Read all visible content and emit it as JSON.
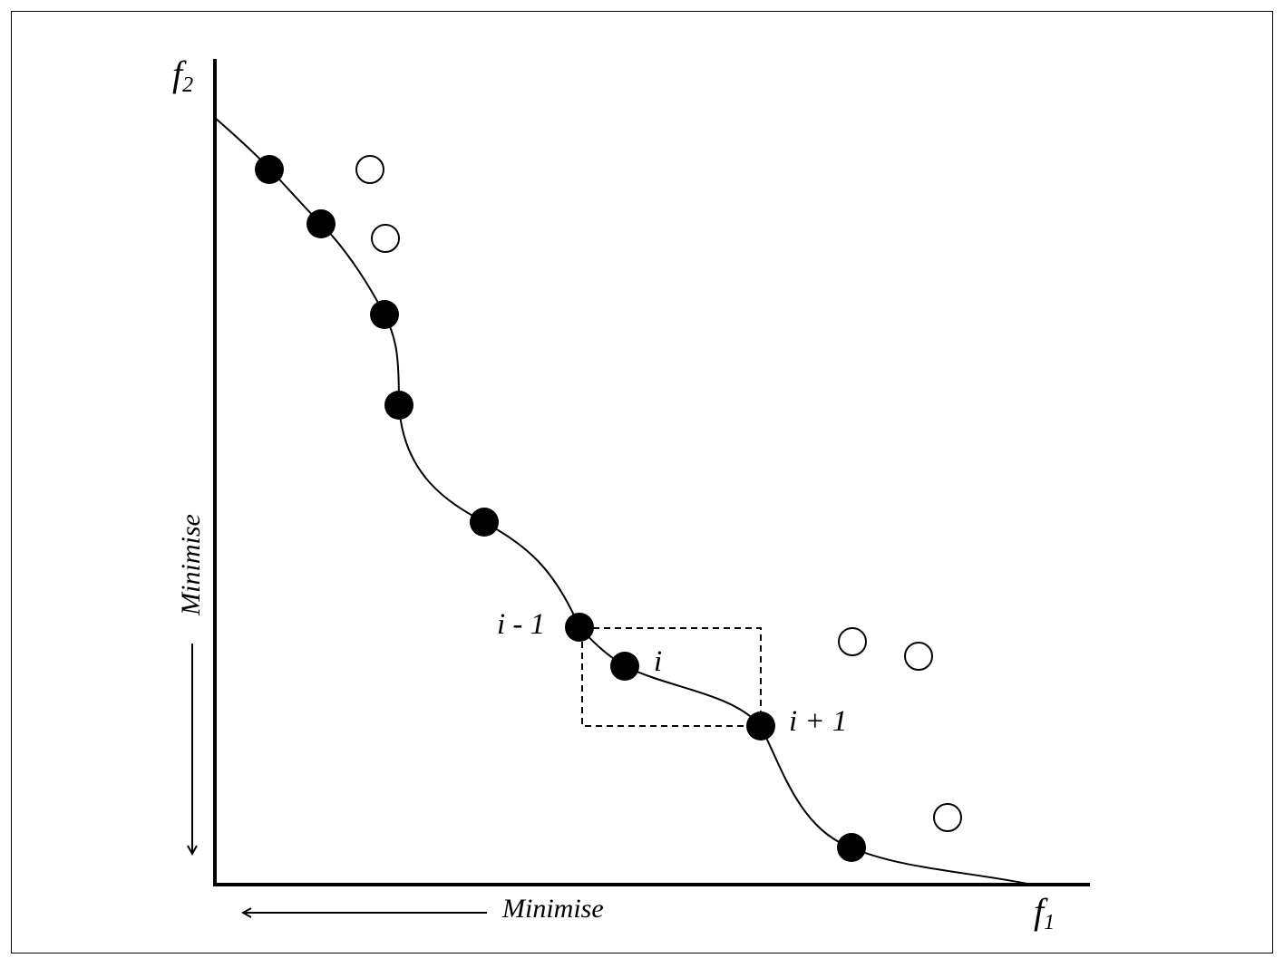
{
  "axes": {
    "y_label": "f",
    "y_label_sub": "2",
    "x_label": "f",
    "x_label_sub": "1",
    "y_direction_label": "Minimise",
    "x_direction_label": "Minimise"
  },
  "point_labels": {
    "prev": "i - 1",
    "current": "i",
    "next": "i + 1"
  },
  "colors": {
    "ink": "#000000",
    "background": "#ffffff"
  }
}
